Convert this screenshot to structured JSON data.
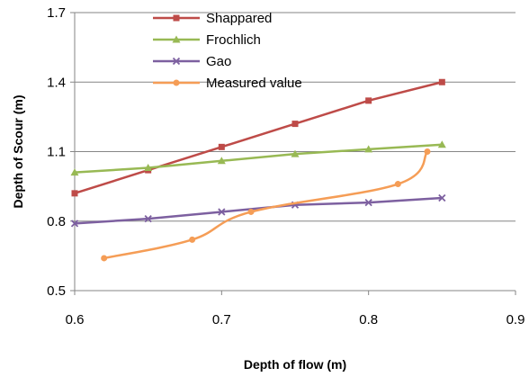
{
  "chart_data": {
    "type": "line",
    "title": "",
    "xlabel": "Depth of flow (m)",
    "ylabel": "Depth of Scour (m)",
    "xlim": [
      0.6,
      0.9
    ],
    "ylim": [
      0.5,
      1.7
    ],
    "x_ticks": [
      0.6,
      0.7,
      0.8,
      0.9
    ],
    "x_tick_labels": [
      "0.6",
      "0.7",
      "0.8",
      "0.9"
    ],
    "y_ticks": [
      0.5,
      0.8,
      1.1,
      1.4,
      1.7
    ],
    "y_tick_labels": [
      "0.5",
      "0.8",
      "1.1",
      "1.4",
      "1.7"
    ],
    "grid": "horizontal",
    "legend_position": "top-center",
    "series": [
      {
        "name": "Shappared",
        "color": "#BE4B48",
        "marker": "square",
        "points": [
          [
            0.6,
            0.92
          ],
          [
            0.65,
            1.02
          ],
          [
            0.7,
            1.12
          ],
          [
            0.75,
            1.22
          ],
          [
            0.8,
            1.32
          ],
          [
            0.85,
            1.4
          ]
        ]
      },
      {
        "name": "Frochlich",
        "color": "#98B954",
        "marker": "triangle",
        "points": [
          [
            0.6,
            1.01
          ],
          [
            0.65,
            1.03
          ],
          [
            0.7,
            1.06
          ],
          [
            0.75,
            1.09
          ],
          [
            0.8,
            1.11
          ],
          [
            0.85,
            1.13
          ]
        ]
      },
      {
        "name": "Gao",
        "color": "#7D60A0",
        "marker": "x",
        "points": [
          [
            0.6,
            0.79
          ],
          [
            0.65,
            0.81
          ],
          [
            0.7,
            0.84
          ],
          [
            0.75,
            0.87
          ],
          [
            0.8,
            0.88
          ],
          [
            0.85,
            0.9
          ]
        ]
      },
      {
        "name": "Measured value",
        "color": "#F59D56",
        "marker": "circle",
        "points": [
          [
            0.62,
            0.64
          ],
          [
            0.68,
            0.72
          ],
          [
            0.72,
            0.84
          ],
          [
            0.82,
            0.96
          ],
          [
            0.84,
            1.1
          ]
        ]
      }
    ]
  }
}
